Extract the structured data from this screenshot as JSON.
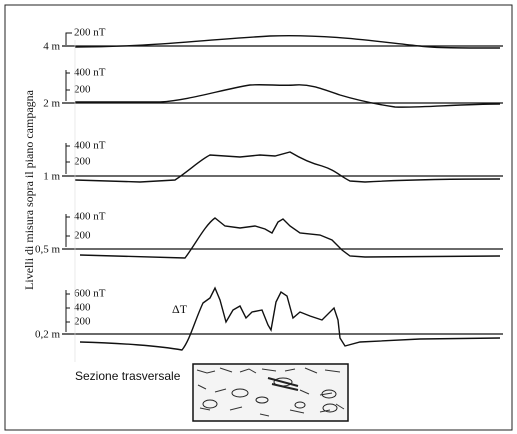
{
  "figure": {
    "y_axis_label": "Livelli di misura sopra il piano campagna",
    "panels": [
      {
        "level": "4 m",
        "scale_labels": [
          "200 nT"
        ]
      },
      {
        "level": "2 m",
        "scale_labels": [
          "400 nT",
          "200"
        ]
      },
      {
        "level": "1 m",
        "scale_labels": [
          "400 nT",
          "200"
        ]
      },
      {
        "level": "0,5 m",
        "scale_labels": [
          "400 nT",
          "200"
        ]
      },
      {
        "level": "0,2 m",
        "scale_labels": [
          "600 nT",
          "400",
          "200"
        ]
      }
    ],
    "annotation": "ΔT",
    "section_label": "Sezione trasversale"
  }
}
